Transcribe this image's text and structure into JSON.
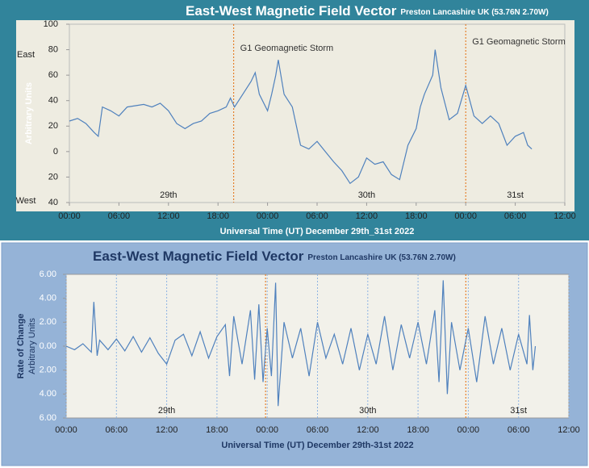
{
  "chart_data": [
    {
      "type": "line",
      "title": "East-West Magnetic Field Vector",
      "subtitle": "Preston Lancashire UK (53.76N 2.70W)",
      "ylabel": "Arbitrary Units",
      "east_label": "East",
      "west_label": "West",
      "xlabel": "Universal Time (UT) December 29th_31st 2022",
      "xlim": [
        0,
        60
      ],
      "xticks": [
        {
          "value": 0,
          "label": "00:00"
        },
        {
          "value": 6,
          "label": "06:00"
        },
        {
          "value": 12,
          "label": "12:00"
        },
        {
          "value": 18,
          "label": "18:00"
        },
        {
          "value": 24,
          "label": "00:00"
        },
        {
          "value": 30,
          "label": "06:00"
        },
        {
          "value": 36,
          "label": "12:00"
        },
        {
          "value": 42,
          "label": "18:00"
        },
        {
          "value": 48,
          "label": "00:00"
        },
        {
          "value": 54,
          "label": "06:00"
        },
        {
          "value": 60,
          "label": "12:00"
        }
      ],
      "ylim": [
        -40,
        100
      ],
      "yticks": [
        100,
        80,
        60,
        40,
        20,
        0,
        {
          "value": -20,
          "label": "20"
        },
        {
          "value": -40,
          "label": "40"
        }
      ],
      "grid": false,
      "x": [
        0,
        1,
        2,
        3,
        3.5,
        4,
        5,
        6,
        7,
        8,
        9,
        10,
        11,
        12,
        13,
        14,
        15,
        16,
        17,
        18,
        19,
        19.5,
        20,
        21,
        22,
        22.5,
        23,
        24,
        24.5,
        25,
        25.3,
        26,
        27,
        28,
        29,
        30,
        31,
        32,
        33,
        34,
        35,
        36,
        37,
        38,
        39,
        40,
        41,
        42,
        42.5,
        43,
        44,
        44.3,
        45,
        46,
        47,
        48,
        48.5,
        49,
        50,
        51,
        52,
        53,
        54,
        55,
        55.5,
        56
      ],
      "series": [
        {
          "color": "#4f81bd",
          "values": [
            24,
            26,
            22,
            15,
            12,
            35,
            32,
            28,
            35,
            36,
            37,
            35,
            38,
            32,
            22,
            18,
            22,
            24,
            30,
            32,
            35,
            42,
            35,
            45,
            55,
            62,
            45,
            32,
            45,
            60,
            72,
            45,
            35,
            5,
            2,
            8,
            0,
            -8,
            -15,
            -25,
            -20,
            -5,
            -10,
            -8,
            -18,
            -22,
            5,
            18,
            35,
            45,
            60,
            80,
            50,
            25,
            30,
            52,
            40,
            28,
            22,
            28,
            22,
            5,
            12,
            15,
            5,
            2
          ]
        }
      ],
      "marker_color": "#e46c0a",
      "markers": [
        {
          "x": 19.9,
          "label": "G1 Geomagnetic Storm"
        },
        {
          "x": 48,
          "label": "G1 Geomagnetic Storm"
        }
      ],
      "day_labels": [
        {
          "x": 12,
          "text": "29th"
        },
        {
          "x": 36,
          "text": "30th"
        },
        {
          "x": 54,
          "text": "31st"
        }
      ]
    },
    {
      "type": "line",
      "title": "East-West Magnetic Field Vector",
      "subtitle": "Preston Lancashire UK (53.76N 2.70W)",
      "ylabel": "Rate of Change",
      "ysublabel": "Arbitrary Units",
      "xlabel": "Universal Time (UT) December 29th-31st 2022",
      "xlim": [
        0,
        60
      ],
      "xticks": [
        {
          "value": 0,
          "label": "00:00"
        },
        {
          "value": 6,
          "label": "06:00"
        },
        {
          "value": 12,
          "label": "12:00"
        },
        {
          "value": 18,
          "label": "18:00"
        },
        {
          "value": 24,
          "label": "00:00"
        },
        {
          "value": 30,
          "label": "06:00"
        },
        {
          "value": 36,
          "label": "12:00"
        },
        {
          "value": 42,
          "label": "18:00"
        },
        {
          "value": 48,
          "label": "00:00"
        },
        {
          "value": 54,
          "label": "06:00"
        },
        {
          "value": 60,
          "label": "12:00"
        }
      ],
      "ylim": [
        -6,
        6
      ],
      "yticks": [
        {
          "value": 6,
          "label": "6.00"
        },
        {
          "value": 4,
          "label": "4.00"
        },
        {
          "value": 2,
          "label": "2.00"
        },
        {
          "value": 0,
          "label": "0.00"
        },
        {
          "value": -2,
          "label": "2.00"
        },
        {
          "value": -4,
          "label": "4.00"
        },
        {
          "value": -6,
          "label": "6.00"
        }
      ],
      "grid": "x",
      "x": [
        0,
        1,
        2,
        3,
        3.3,
        3.7,
        4,
        5,
        6,
        7,
        8,
        9,
        10,
        11,
        12,
        13,
        14,
        15,
        16,
        17,
        18,
        19,
        19.5,
        20,
        21,
        22,
        22.5,
        23,
        23.5,
        24,
        24.5,
        25,
        25.3,
        26,
        27,
        28,
        29,
        30,
        31,
        32,
        33,
        34,
        35,
        36,
        37,
        38,
        39,
        40,
        41,
        42,
        43,
        44,
        44.5,
        45,
        45.5,
        46,
        47,
        48,
        49,
        50,
        51,
        52,
        53,
        54,
        55,
        55.3,
        55.7,
        56
      ],
      "series": [
        {
          "color": "#4f81bd",
          "values": [
            0,
            -0.3,
            0.2,
            -0.5,
            3.7,
            -0.8,
            0.5,
            -0.3,
            0.6,
            -0.4,
            0.8,
            -0.5,
            0.7,
            -0.6,
            -1.5,
            0.5,
            1.0,
            -0.8,
            1.2,
            -1.0,
            0.8,
            1.8,
            -2.5,
            2.5,
            -1.5,
            3.0,
            -2.8,
            3.5,
            -3.0,
            1.5,
            -2.5,
            5.3,
            -5.0,
            2.0,
            -1.0,
            1.5,
            -2.5,
            2.0,
            -1.0,
            1.0,
            -1.5,
            1.5,
            -2.0,
            1.0,
            -1.5,
            2.5,
            -2.0,
            1.8,
            -1.0,
            2.0,
            -1.5,
            3.0,
            -3.0,
            5.5,
            -4.0,
            2.0,
            -2.0,
            1.5,
            -3.0,
            2.5,
            -1.5,
            1.5,
            -2.0,
            1.0,
            -1.5,
            2.6,
            -2.0,
            0
          ]
        }
      ],
      "marker_color": "#e46c0a",
      "markers": [
        {
          "x": 23.8
        },
        {
          "x": 47.7
        }
      ],
      "day_labels": [
        {
          "x": 12,
          "text": "29th"
        },
        {
          "x": 36,
          "text": "30th"
        },
        {
          "x": 54,
          "text": "31st"
        }
      ]
    }
  ]
}
